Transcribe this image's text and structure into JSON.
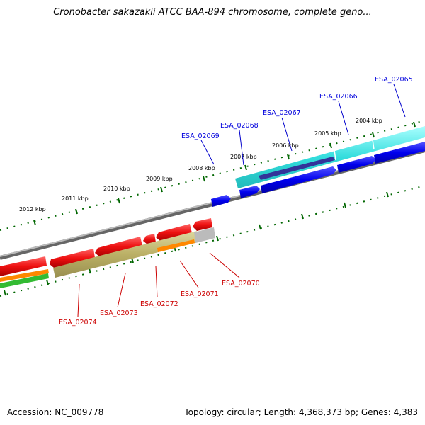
{
  "title": "Cronobacter sakazakii ATCC BAA-894 chromosome, complete geno...",
  "accession": "Accession: NC_009778",
  "summary": "Topology: circular; Length: 4,368,373 bp; Genes: 4,383",
  "scale_labels": [
    "2012 kbp",
    "2011 kbp",
    "2010 kbp",
    "2009 kbp",
    "2008 kbp",
    "2007 kbp",
    "2006 kbp",
    "2005 kbp",
    "2004 kbp"
  ],
  "top_genes": [
    "ESA_02069",
    "ESA_02068",
    "ESA_02067",
    "ESA_02066",
    "ESA_02065"
  ],
  "bottom_genes": [
    "ESA_02074",
    "ESA_02073",
    "ESA_02072",
    "ESA_02071",
    "ESA_02070"
  ],
  "colors": {
    "red": "#ee1111",
    "blue": "#0000ee",
    "cyan": "#33dddd",
    "olive": "#bbb066",
    "orange": "#ff8800",
    "green": "#33bb33",
    "tick": "#006600",
    "backbone": "#888888"
  }
}
